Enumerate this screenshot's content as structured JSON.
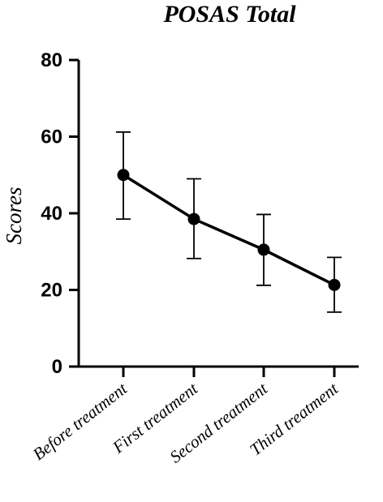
{
  "chart_data": {
    "type": "line",
    "title": "POSAS Total",
    "xlabel": "",
    "ylabel": "Scores",
    "categories": [
      "Before treatment",
      "First treatment",
      "Second treatment",
      "Third treatment"
    ],
    "series": [
      {
        "values": [
          50,
          38.5,
          30.5,
          21.3
        ],
        "error_low": [
          38.5,
          28.2,
          21.2,
          14.2
        ],
        "error_high": [
          61.2,
          49,
          39.7,
          28.5
        ],
        "color": "#000000",
        "marker": "circle"
      }
    ],
    "ylim": [
      0,
      80
    ],
    "yticks": [
      0,
      20,
      40,
      60,
      80
    ],
    "grid": false,
    "legend": "none"
  }
}
